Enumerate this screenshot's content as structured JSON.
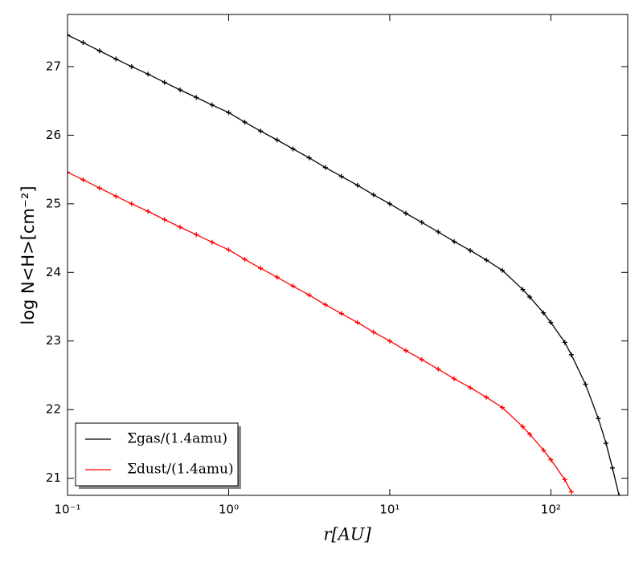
{
  "chart_data": {
    "type": "line",
    "xlabel": "r[AU]",
    "ylabel": "log N<H>[cm⁻²]",
    "xscale": "log",
    "x": [
      0.1,
      0.125,
      0.158,
      0.2,
      0.25,
      0.316,
      0.4,
      0.5,
      0.63,
      0.79,
      1.0,
      1.26,
      1.58,
      2.0,
      2.51,
      3.16,
      3.98,
      5.01,
      6.31,
      7.94,
      10,
      12.6,
      15.8,
      20,
      25.1,
      31.6,
      39.8,
      50,
      67,
      74,
      90,
      100,
      122,
      134,
      164,
      197,
      220,
      241,
      265
    ],
    "series": [
      {
        "name": "Σgas/(1.4amu)",
        "color": "#000000",
        "values": [
          27.46,
          27.35,
          27.23,
          27.11,
          27.0,
          26.89,
          26.77,
          26.66,
          26.55,
          26.44,
          26.33,
          26.19,
          26.06,
          25.93,
          25.8,
          25.67,
          25.53,
          25.4,
          25.27,
          25.13,
          25.0,
          24.86,
          24.73,
          24.59,
          24.45,
          24.32,
          24.18,
          24.03,
          23.75,
          23.64,
          23.41,
          23.27,
          22.98,
          22.8,
          22.37,
          21.87,
          21.51,
          21.15,
          20.75
        ]
      },
      {
        "name": "Σdust/(1.4amu)",
        "color": "#ff0000",
        "values": [
          25.46,
          25.35,
          25.23,
          25.11,
          25.0,
          24.89,
          24.77,
          24.66,
          24.55,
          24.44,
          24.33,
          24.19,
          24.06,
          23.93,
          23.8,
          23.67,
          23.53,
          23.4,
          23.27,
          23.13,
          23.0,
          22.86,
          22.73,
          22.59,
          22.45,
          22.32,
          22.18,
          22.03,
          21.75,
          21.64,
          21.41,
          21.27,
          20.98,
          20.8,
          null,
          null,
          null,
          null,
          null
        ]
      }
    ],
    "xlim": [
      0.1,
      300
    ],
    "ylim": [
      20.75,
      27.76
    ],
    "xticks": [
      {
        "value": 0.1,
        "label": "10⁻¹"
      },
      {
        "value": 1,
        "label": "10⁰"
      },
      {
        "value": 10,
        "label": "10¹"
      },
      {
        "value": 100,
        "label": "10²"
      }
    ],
    "yticks": [
      21,
      22,
      23,
      24,
      25,
      26,
      27
    ],
    "legend": "lower left",
    "grid": false
  }
}
